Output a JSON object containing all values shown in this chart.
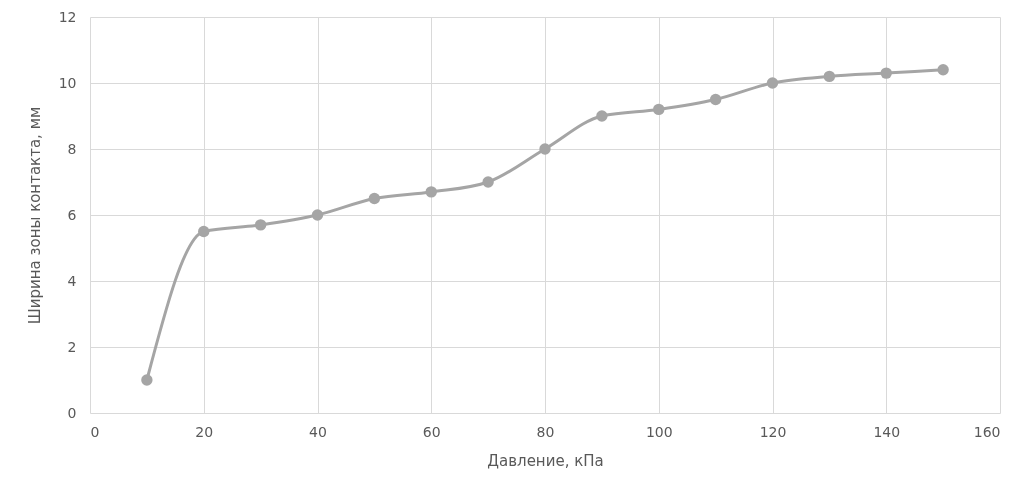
{
  "chart_data": {
    "type": "line",
    "xlabel": "Давление, кПа",
    "ylabel": "Ширина зоны контакта, мм",
    "x": [
      10,
      20,
      30,
      40,
      50,
      60,
      70,
      80,
      90,
      100,
      110,
      120,
      130,
      140,
      150
    ],
    "series": [
      {
        "color": "#a5a5a5",
        "values": [
          1,
          5.5,
          5.7,
          6,
          6.5,
          6.7,
          7,
          8,
          9,
          9.2,
          9.5,
          10,
          10.2,
          10.3,
          10.4
        ]
      }
    ],
    "xlim": [
      0,
      160
    ],
    "xticks": [
      0,
      20,
      40,
      60,
      80,
      100,
      120,
      140,
      160
    ],
    "ylim": [
      0,
      12
    ],
    "yticks": [
      0,
      2,
      4,
      6,
      8,
      10,
      12
    ],
    "grid": true,
    "marker": "circle",
    "line_style": "solid"
  }
}
